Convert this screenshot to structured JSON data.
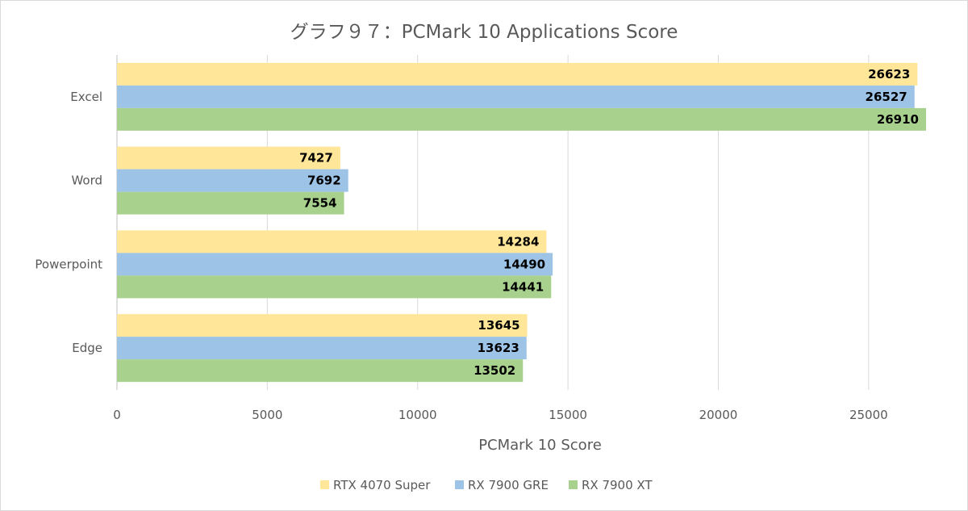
{
  "chart_data": {
    "type": "bar",
    "orientation": "horizontal",
    "title": "グラフ９７：PCMark 10 Applications Score",
    "xlabel": "PCMark 10 Score",
    "ylabel": "",
    "categories": [
      "Excel",
      "Word",
      "Powerpoint",
      "Edge"
    ],
    "series": [
      {
        "name": "RTX 4070 Super",
        "color": "#ffe699",
        "values": [
          26623,
          7427,
          14284,
          13645
        ]
      },
      {
        "name": "RX 7900 GRE",
        "color": "#9dc3e6",
        "values": [
          26527,
          7692,
          14490,
          13623
        ]
      },
      {
        "name": "RX 7900 XT",
        "color": "#a9d18e",
        "values": [
          26910,
          7554,
          14441,
          13502
        ]
      }
    ],
    "xlim": [
      0,
      27500
    ],
    "xticks": [
      0,
      5000,
      10000,
      15000,
      20000,
      25000
    ],
    "grid": true,
    "legend_position": "bottom"
  }
}
